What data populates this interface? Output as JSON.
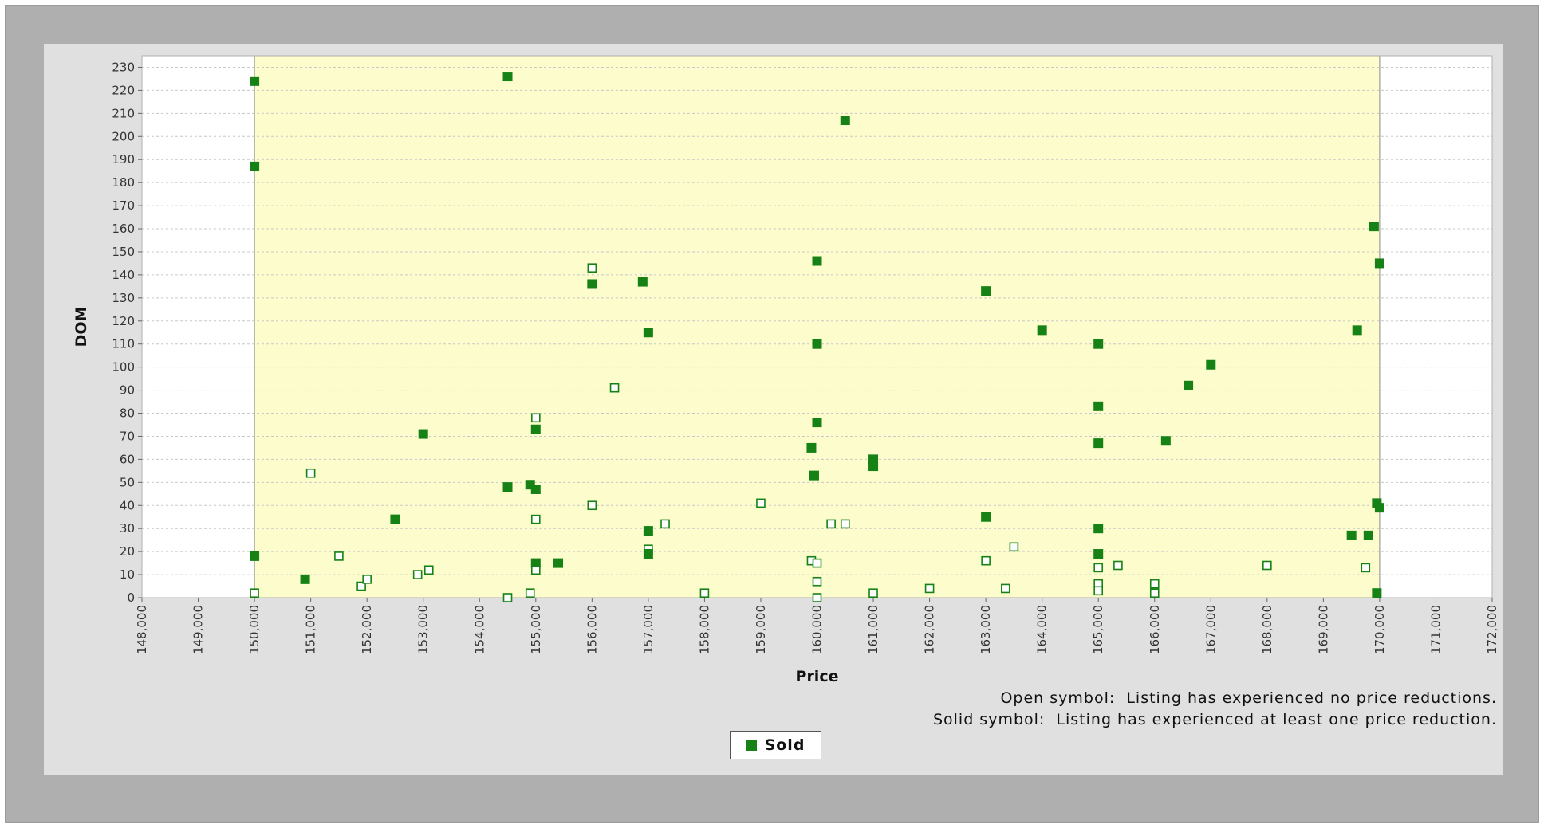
{
  "chart_data": {
    "type": "scatter",
    "xlabel": "Price",
    "ylabel": "DOM",
    "xlim": [
      148000,
      172000
    ],
    "ylim": [
      0,
      235
    ],
    "x_ticks": [
      "148,000",
      "149,000",
      "150,000",
      "151,000",
      "152,000",
      "153,000",
      "154,000",
      "155,000",
      "156,000",
      "157,000",
      "158,000",
      "159,000",
      "160,000",
      "161,000",
      "162,000",
      "163,000",
      "164,000",
      "165,000",
      "166,000",
      "167,000",
      "168,000",
      "169,000",
      "170,000",
      "171,000",
      "172,000"
    ],
    "y_ticks": [
      "0",
      "10",
      "20",
      "30",
      "40",
      "50",
      "60",
      "70",
      "80",
      "90",
      "100",
      "110",
      "120",
      "130",
      "140",
      "150",
      "160",
      "170",
      "180",
      "190",
      "200",
      "210",
      "220",
      "230"
    ],
    "highlight_range_x": [
      150000,
      170000
    ],
    "grid": true,
    "colors": {
      "point": "#168216",
      "highlight": "#fcfccc",
      "plot_bg": "#ffffff"
    },
    "series": [
      {
        "name": "Sold",
        "points": [
          {
            "x": 150000,
            "y": 224,
            "solid": true
          },
          {
            "x": 150000,
            "y": 187,
            "solid": true
          },
          {
            "x": 150000,
            "y": 18,
            "solid": true
          },
          {
            "x": 150000,
            "y": 2,
            "solid": false
          },
          {
            "x": 150900,
            "y": 8,
            "solid": true
          },
          {
            "x": 151000,
            "y": 54,
            "solid": false
          },
          {
            "x": 151500,
            "y": 18,
            "solid": false
          },
          {
            "x": 151900,
            "y": 5,
            "solid": false
          },
          {
            "x": 152000,
            "y": 8,
            "solid": false
          },
          {
            "x": 152500,
            "y": 34,
            "solid": true
          },
          {
            "x": 152900,
            "y": 10,
            "solid": false
          },
          {
            "x": 153000,
            "y": 71,
            "solid": true
          },
          {
            "x": 153100,
            "y": 12,
            "solid": false
          },
          {
            "x": 154500,
            "y": 226,
            "solid": true
          },
          {
            "x": 154500,
            "y": 48,
            "solid": true
          },
          {
            "x": 154500,
            "y": 0,
            "solid": false
          },
          {
            "x": 154900,
            "y": 49,
            "solid": true
          },
          {
            "x": 154900,
            "y": 2,
            "solid": false
          },
          {
            "x": 155000,
            "y": 78,
            "solid": false
          },
          {
            "x": 155000,
            "y": 73,
            "solid": true
          },
          {
            "x": 155000,
            "y": 47,
            "solid": true
          },
          {
            "x": 155000,
            "y": 34,
            "solid": false
          },
          {
            "x": 155000,
            "y": 15,
            "solid": true
          },
          {
            "x": 155000,
            "y": 12,
            "solid": false
          },
          {
            "x": 155400,
            "y": 15,
            "solid": true
          },
          {
            "x": 156000,
            "y": 143,
            "solid": false
          },
          {
            "x": 156000,
            "y": 136,
            "solid": true
          },
          {
            "x": 156000,
            "y": 40,
            "solid": false
          },
          {
            "x": 156400,
            "y": 91,
            "solid": false
          },
          {
            "x": 156900,
            "y": 137,
            "solid": true
          },
          {
            "x": 157000,
            "y": 115,
            "solid": true
          },
          {
            "x": 157000,
            "y": 29,
            "solid": true
          },
          {
            "x": 157000,
            "y": 21,
            "solid": false
          },
          {
            "x": 157000,
            "y": 19,
            "solid": true
          },
          {
            "x": 157300,
            "y": 32,
            "solid": false
          },
          {
            "x": 158000,
            "y": 2,
            "solid": false
          },
          {
            "x": 159000,
            "y": 41,
            "solid": false
          },
          {
            "x": 159900,
            "y": 65,
            "solid": true
          },
          {
            "x": 159900,
            "y": 16,
            "solid": false
          },
          {
            "x": 159950,
            "y": 53,
            "solid": true
          },
          {
            "x": 160000,
            "y": 146,
            "solid": true
          },
          {
            "x": 160000,
            "y": 110,
            "solid": true
          },
          {
            "x": 160000,
            "y": 76,
            "solid": true
          },
          {
            "x": 160000,
            "y": 15,
            "solid": false
          },
          {
            "x": 160000,
            "y": 7,
            "solid": false
          },
          {
            "x": 160000,
            "y": 0,
            "solid": false
          },
          {
            "x": 160250,
            "y": 32,
            "solid": false
          },
          {
            "x": 160500,
            "y": 207,
            "solid": true
          },
          {
            "x": 160500,
            "y": 32,
            "solid": false
          },
          {
            "x": 161000,
            "y": 60,
            "solid": true
          },
          {
            "x": 161000,
            "y": 57,
            "solid": true
          },
          {
            "x": 161000,
            "y": 2,
            "solid": false
          },
          {
            "x": 162000,
            "y": 4,
            "solid": false
          },
          {
            "x": 163000,
            "y": 133,
            "solid": true
          },
          {
            "x": 163000,
            "y": 35,
            "solid": true
          },
          {
            "x": 163000,
            "y": 16,
            "solid": false
          },
          {
            "x": 163350,
            "y": 4,
            "solid": false
          },
          {
            "x": 163500,
            "y": 22,
            "solid": false
          },
          {
            "x": 164000,
            "y": 116,
            "solid": true
          },
          {
            "x": 165000,
            "y": 110,
            "solid": true
          },
          {
            "x": 165000,
            "y": 83,
            "solid": true
          },
          {
            "x": 165000,
            "y": 67,
            "solid": true
          },
          {
            "x": 165000,
            "y": 30,
            "solid": true
          },
          {
            "x": 165000,
            "y": 19,
            "solid": true
          },
          {
            "x": 165000,
            "y": 13,
            "solid": false
          },
          {
            "x": 165000,
            "y": 6,
            "solid": false
          },
          {
            "x": 165000,
            "y": 3,
            "solid": false
          },
          {
            "x": 165350,
            "y": 14,
            "solid": false
          },
          {
            "x": 166000,
            "y": 6,
            "solid": false
          },
          {
            "x": 166000,
            "y": 2,
            "solid": false
          },
          {
            "x": 166200,
            "y": 68,
            "solid": true
          },
          {
            "x": 166600,
            "y": 92,
            "solid": true
          },
          {
            "x": 167000,
            "y": 101,
            "solid": true
          },
          {
            "x": 168000,
            "y": 14,
            "solid": false
          },
          {
            "x": 169500,
            "y": 27,
            "solid": true
          },
          {
            "x": 169600,
            "y": 116,
            "solid": true
          },
          {
            "x": 169750,
            "y": 13,
            "solid": false
          },
          {
            "x": 169800,
            "y": 27,
            "solid": true
          },
          {
            "x": 169900,
            "y": 161,
            "solid": true
          },
          {
            "x": 169950,
            "y": 41,
            "solid": true
          },
          {
            "x": 169950,
            "y": 2,
            "solid": true
          },
          {
            "x": 170000,
            "y": 145,
            "solid": true
          },
          {
            "x": 170000,
            "y": 39,
            "solid": true
          }
        ]
      }
    ],
    "notes": [
      "Open symbol:  Listing has experienced no price reductions.",
      "Solid symbol:  Listing has experienced at least one price reduction."
    ],
    "legend": {
      "label": "Sold",
      "placement": "bottom-center"
    }
  }
}
